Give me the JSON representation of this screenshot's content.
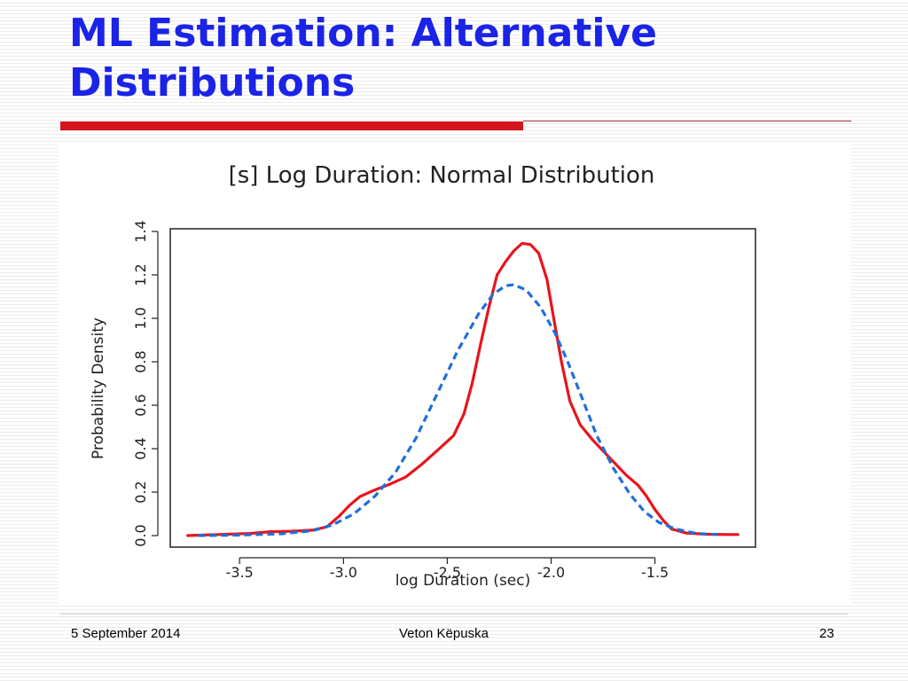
{
  "slide": {
    "title_line1": "ML Estimation: Alternative",
    "title_line2": "Distributions"
  },
  "footer": {
    "date": "5 September 2014",
    "author": "Veton Këpuska",
    "page": "23"
  },
  "colors": {
    "title": "#1a23e6",
    "accent_bar": "#d4161c",
    "empirical_series": "#e8141c",
    "normal_fit_series": "#1f6fdc"
  },
  "chart_data": {
    "type": "line",
    "title": "[s] Log Duration: Normal Distribution",
    "xlabel": "log Duration (sec)",
    "ylabel": "Probability Density",
    "xlim": [
      -3.8,
      -1.05
    ],
    "ylim": [
      0,
      1.4
    ],
    "xticks": [
      -3.5,
      -3.0,
      -2.5,
      -2.0,
      -1.5
    ],
    "xtick_labels": [
      "-3.5",
      "-3.0",
      "-2.5",
      "-2.0",
      "-1.5"
    ],
    "yticks": [
      0.0,
      0.2,
      0.4,
      0.6,
      0.8,
      1.0,
      1.2,
      1.4
    ],
    "ytick_labels": [
      "0.0",
      "0.2",
      "0.4",
      "0.6",
      "0.8",
      "1.0",
      "1.2",
      "1.4"
    ],
    "grid": false,
    "legend": "none",
    "series": [
      {
        "style": "solid",
        "color": "#e8141c",
        "points": [
          [
            -3.75,
            0.0
          ],
          [
            -3.6,
            0.005
          ],
          [
            -3.45,
            0.01
          ],
          [
            -3.35,
            0.018
          ],
          [
            -3.25,
            0.02
          ],
          [
            -3.15,
            0.025
          ],
          [
            -3.08,
            0.04
          ],
          [
            -3.02,
            0.09
          ],
          [
            -2.97,
            0.14
          ],
          [
            -2.92,
            0.18
          ],
          [
            -2.85,
            0.21
          ],
          [
            -2.78,
            0.235
          ],
          [
            -2.7,
            0.27
          ],
          [
            -2.62,
            0.33
          ],
          [
            -2.55,
            0.39
          ],
          [
            -2.47,
            0.46
          ],
          [
            -2.42,
            0.56
          ],
          [
            -2.38,
            0.7
          ],
          [
            -2.34,
            0.88
          ],
          [
            -2.3,
            1.05
          ],
          [
            -2.26,
            1.2
          ],
          [
            -2.22,
            1.26
          ],
          [
            -2.18,
            1.31
          ],
          [
            -2.14,
            1.345
          ],
          [
            -2.1,
            1.34
          ],
          [
            -2.06,
            1.3
          ],
          [
            -2.02,
            1.18
          ],
          [
            -1.98,
            0.96
          ],
          [
            -1.95,
            0.8
          ],
          [
            -1.91,
            0.62
          ],
          [
            -1.86,
            0.51
          ],
          [
            -1.8,
            0.44
          ],
          [
            -1.72,
            0.36
          ],
          [
            -1.64,
            0.28
          ],
          [
            -1.58,
            0.23
          ],
          [
            -1.54,
            0.18
          ],
          [
            -1.5,
            0.12
          ],
          [
            -1.46,
            0.07
          ],
          [
            -1.42,
            0.03
          ],
          [
            -1.35,
            0.012
          ],
          [
            -1.25,
            0.006
          ],
          [
            -1.15,
            0.005
          ],
          [
            -1.1,
            0.005
          ]
        ]
      },
      {
        "style": "dashed",
        "color": "#1f6fdc",
        "points": [
          [
            -3.7,
            0.0
          ],
          [
            -3.5,
            0.002
          ],
          [
            -3.3,
            0.008
          ],
          [
            -3.15,
            0.022
          ],
          [
            -3.05,
            0.05
          ],
          [
            -2.95,
            0.1
          ],
          [
            -2.85,
            0.18
          ],
          [
            -2.75,
            0.29
          ],
          [
            -2.65,
            0.45
          ],
          [
            -2.55,
            0.65
          ],
          [
            -2.45,
            0.85
          ],
          [
            -2.35,
            1.02
          ],
          [
            -2.28,
            1.11
          ],
          [
            -2.22,
            1.15
          ],
          [
            -2.18,
            1.155
          ],
          [
            -2.12,
            1.13
          ],
          [
            -2.05,
            1.05
          ],
          [
            -1.98,
            0.93
          ],
          [
            -1.92,
            0.8
          ],
          [
            -1.85,
            0.63
          ],
          [
            -1.78,
            0.46
          ],
          [
            -1.7,
            0.31
          ],
          [
            -1.62,
            0.19
          ],
          [
            -1.55,
            0.11
          ],
          [
            -1.48,
            0.06
          ],
          [
            -1.4,
            0.03
          ],
          [
            -1.3,
            0.01
          ],
          [
            -1.2,
            0.005
          ]
        ]
      }
    ]
  }
}
